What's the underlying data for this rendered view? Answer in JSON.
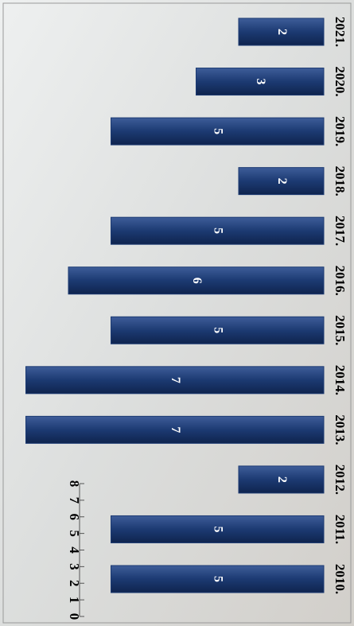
{
  "chart_data": {
    "type": "bar",
    "categories": [
      "2010.",
      "2011.",
      "2012.",
      "2013.",
      "2014.",
      "2015.",
      "2016.",
      "2017.",
      "2018.",
      "2019.",
      "2020.",
      "2021."
    ],
    "values": [
      5,
      5,
      2,
      7,
      7,
      5,
      6,
      5,
      2,
      5,
      3,
      2
    ],
    "color": "#1c3a72",
    "ylim": [
      0,
      8
    ],
    "yticks": [
      0,
      1,
      2,
      3,
      4,
      5,
      6,
      7,
      8
    ]
  }
}
